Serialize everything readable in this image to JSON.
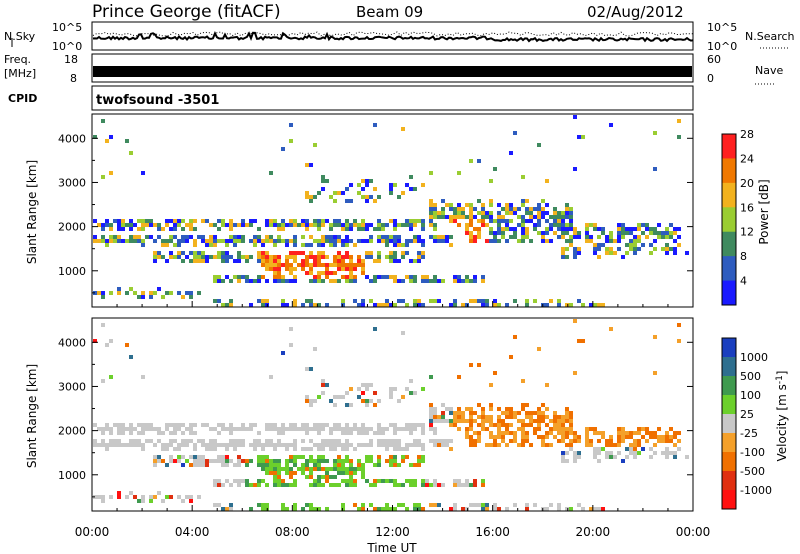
{
  "header": {
    "station": "Prince George (fitACF)",
    "beam": "Beam 09",
    "date": "02/Aug/2012"
  },
  "strips": {
    "nsky_label": "N.Sky",
    "nsky_ticks": [
      "10^5",
      "10^0"
    ],
    "nsearch_label": "N.Search",
    "freq_label": "Freq.",
    "freq_unit": "[MHz]",
    "freq_ticks": [
      "18",
      "8"
    ],
    "nave_ticks": [
      "60",
      "0"
    ],
    "nave_label": "Nave",
    "cpid_label": "CPID",
    "cpid_value": "twofsound -3501"
  },
  "chart_data": [
    {
      "type": "heatmap",
      "name": "power",
      "ylabel": "Slant Range [km]",
      "ylim": [
        180,
        4550
      ],
      "yticks": [
        "1000",
        "2000",
        "3000",
        "4000"
      ],
      "colorbar_label": "Power [dB]",
      "colorbar_ticks": [
        "4",
        "8",
        "12",
        "16",
        "20",
        "24",
        "28"
      ],
      "colors": [
        "#1a1aff",
        "#2e5cbf",
        "#3f8a5f",
        "#9acd32",
        "#f2b21e",
        "#f07800",
        "#ff2020"
      ],
      "x": [
        "00:00",
        "04:00",
        "08:00",
        "12:00",
        "16:00",
        "20:00",
        "00:00"
      ]
    },
    {
      "type": "heatmap",
      "name": "velocity",
      "ylabel": "Slant Range [km]",
      "ylim": [
        180,
        4550
      ],
      "yticks": [
        "1000",
        "2000",
        "3000",
        "4000"
      ],
      "colorbar_label": "Velocity [m s^-1]",
      "colorbar_ticks": [
        "1000",
        "500",
        "100",
        "25",
        "-25",
        "-100",
        "-500",
        "-1000"
      ],
      "colors": [
        "#1a3fbf",
        "#2e6f8f",
        "#3f9a4f",
        "#6cd02c",
        "#c8c8c8",
        "#f4a02a",
        "#f07000",
        "#e03010",
        "#ff1010"
      ],
      "xlabel": "Time UT",
      "x": [
        "00:00",
        "04:00",
        "08:00",
        "12:00",
        "16:00",
        "20:00",
        "00:00"
      ]
    }
  ]
}
